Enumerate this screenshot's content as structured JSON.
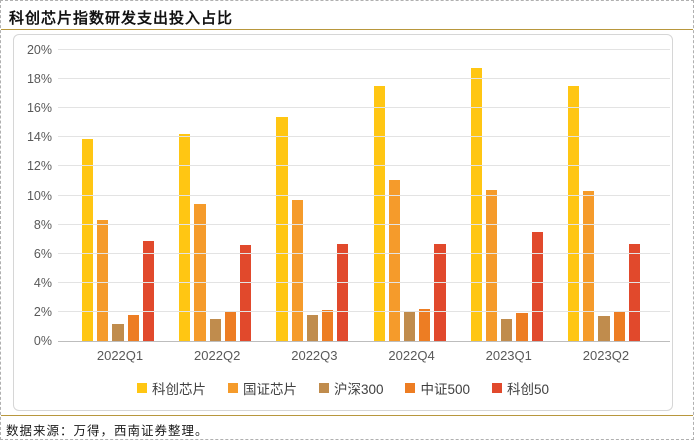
{
  "header": {
    "title": "科创芯片指数研发支出投入占比"
  },
  "footer": {
    "source_text": "数据来源：万得，西南证券整理。"
  },
  "colors": {
    "accent_rule": "#B8973D",
    "grid": "#E3E3E3",
    "axis_line": "#BDBDBD",
    "tick_label": "#595959"
  },
  "chart_data": {
    "type": "bar",
    "title": "科创芯片指数研发支出投入占比",
    "xlabel": "",
    "ylabel": "",
    "ylim": [
      0,
      20
    ],
    "ytick_step": 2,
    "ytick_suffix": "%",
    "grid": true,
    "legend_position": "bottom",
    "categories": [
      "2022Q1",
      "2022Q2",
      "2022Q3",
      "2022Q4",
      "2023Q1",
      "2023Q2"
    ],
    "series": [
      {
        "name": "科创芯片",
        "color": "#FFC613",
        "values": [
          13.9,
          14.2,
          15.4,
          17.5,
          18.8,
          17.5
        ]
      },
      {
        "name": "国证芯片",
        "color": "#F59B2B",
        "values": [
          8.3,
          9.4,
          9.7,
          11.1,
          10.4,
          10.3
        ]
      },
      {
        "name": "沪深300",
        "color": "#C08C4D",
        "values": [
          1.2,
          1.5,
          1.8,
          2.0,
          1.5,
          1.7
        ]
      },
      {
        "name": "中证500",
        "color": "#ED7D23",
        "values": [
          1.8,
          2.0,
          2.1,
          2.2,
          1.9,
          2.0
        ]
      },
      {
        "name": "科创50",
        "color": "#E1492C",
        "values": [
          6.9,
          6.6,
          6.7,
          6.7,
          7.5,
          6.7
        ]
      }
    ]
  }
}
